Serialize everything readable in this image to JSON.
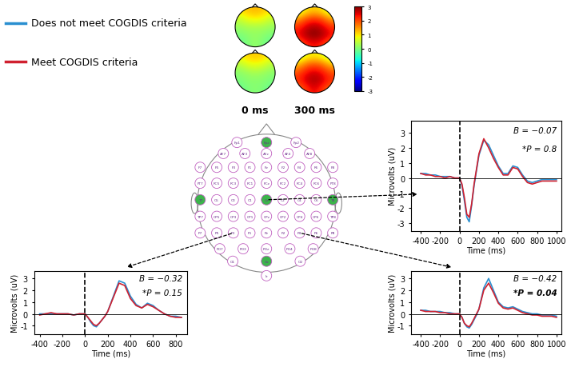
{
  "chart_data": [
    {
      "type": "line",
      "x": [
        -400,
        -350,
        -300,
        -250,
        -200,
        -150,
        -100,
        -50,
        0,
        25,
        50,
        75,
        100,
        125,
        150,
        175,
        200,
        250,
        300,
        350,
        400,
        450,
        500,
        550,
        600,
        650,
        700,
        750,
        800,
        850,
        900,
        950,
        1000
      ],
      "series": [
        {
          "name": "Does not meet COGDIS criteria",
          "color": "#2a8fd0",
          "values": [
            0.3,
            0.3,
            0.2,
            0.2,
            0.1,
            0.1,
            0.1,
            0.0,
            0.0,
            -0.5,
            -1.5,
            -2.6,
            -2.9,
            -1.8,
            -0.5,
            0.5,
            1.5,
            2.5,
            2.2,
            1.5,
            0.8,
            0.3,
            0.3,
            0.8,
            0.7,
            0.2,
            -0.2,
            -0.3,
            -0.2,
            -0.1,
            -0.1,
            -0.1,
            -0.1
          ]
        },
        {
          "name": "Meet COGDIS criteria",
          "color": "#d0202f",
          "values": [
            0.3,
            0.2,
            0.2,
            0.1,
            0.1,
            0.0,
            0.1,
            0.0,
            0.0,
            -0.4,
            -1.3,
            -2.4,
            -2.6,
            -1.7,
            -0.4,
            0.6,
            1.6,
            2.6,
            2.0,
            1.3,
            0.7,
            0.2,
            0.2,
            0.7,
            0.6,
            0.1,
            -0.3,
            -0.4,
            -0.3,
            -0.2,
            -0.2,
            -0.2,
            -0.2
          ]
        }
      ],
      "xlabel": "Time (ms)",
      "ylabel": "Microvolts (uV)",
      "xlim": [
        -500,
        1050
      ],
      "ylim": [
        -3.5,
        3.8
      ],
      "xticks": [
        -400,
        -200,
        0,
        200,
        400,
        600,
        800,
        1000
      ],
      "yticks": [
        -3,
        -2,
        -1,
        0,
        1,
        2,
        3
      ],
      "event_time": 0,
      "baseline": 0,
      "annotations": [
        {
          "text": "B = −0.07",
          "bold": false
        },
        {
          "text": "*P = 0.8",
          "bold": false
        }
      ]
    },
    {
      "type": "line",
      "x": [
        -400,
        -350,
        -300,
        -250,
        -200,
        -150,
        -100,
        -50,
        0,
        25,
        50,
        75,
        100,
        125,
        150,
        175,
        200,
        250,
        300,
        350,
        400,
        450,
        500,
        550,
        600,
        650,
        700,
        750,
        800,
        850
      ],
      "series": [
        {
          "name": "Does not meet COGDIS criteria",
          "color": "#2a8fd0",
          "values": [
            0,
            0,
            0,
            0,
            0,
            0,
            -0.1,
            0,
            0,
            -0.3,
            -0.7,
            -1.0,
            -1.1,
            -0.8,
            -0.5,
            -0.2,
            0.2,
            1.5,
            2.8,
            2.6,
            1.5,
            0.8,
            0.5,
            0.9,
            0.7,
            0.3,
            0,
            -0.2,
            -0.2,
            -0.3
          ]
        },
        {
          "name": "Meet COGDIS criteria",
          "color": "#d0202f",
          "values": [
            -0.1,
            0,
            0.1,
            0,
            0,
            0,
            -0.1,
            0,
            0,
            -0.3,
            -0.6,
            -0.9,
            -1.0,
            -0.8,
            -0.5,
            -0.2,
            0.2,
            1.4,
            2.6,
            2.4,
            1.3,
            0.7,
            0.5,
            0.8,
            0.6,
            0.3,
            0,
            -0.2,
            -0.3,
            -0.3
          ]
        }
      ],
      "xlabel": "Time (ms)",
      "ylabel": "Microvolts (uV)",
      "xlim": [
        -450,
        900
      ],
      "ylim": [
        -1.7,
        3.6
      ],
      "xticks": [
        -400,
        -200,
        0,
        200,
        400,
        600,
        800
      ],
      "yticks": [
        -1,
        0,
        1,
        2,
        3
      ],
      "event_time": 0,
      "baseline": 0,
      "annotations": [
        {
          "text": "B = −0.32",
          "bold": false
        },
        {
          "text": "*P = 0.15",
          "bold": false
        }
      ]
    },
    {
      "type": "line",
      "x": [
        -400,
        -350,
        -300,
        -250,
        -200,
        -150,
        -100,
        -50,
        0,
        25,
        50,
        75,
        100,
        125,
        150,
        175,
        200,
        250,
        300,
        350,
        400,
        450,
        500,
        550,
        600,
        650,
        700,
        750,
        800,
        850,
        900,
        950,
        1000
      ],
      "series": [
        {
          "name": "Does not meet COGDIS criteria",
          "color": "#2a8fd0",
          "values": [
            0.3,
            0.3,
            0.2,
            0.2,
            0.2,
            0.1,
            0.1,
            0,
            0,
            -0.3,
            -0.8,
            -1.1,
            -1.2,
            -0.9,
            -0.5,
            -0.1,
            0.4,
            2.2,
            3.0,
            2.0,
            1.0,
            0.6,
            0.5,
            0.6,
            0.4,
            0.2,
            0.1,
            0,
            0,
            -0.1,
            -0.1,
            -0.1,
            -0.2
          ]
        },
        {
          "name": "Meet COGDIS criteria",
          "color": "#d0202f",
          "values": [
            0.3,
            0.2,
            0.2,
            0.2,
            0.1,
            0.1,
            0.0,
            0,
            0,
            -0.3,
            -0.8,
            -1.0,
            -1.1,
            -0.8,
            -0.4,
            0,
            0.4,
            2.0,
            2.6,
            1.8,
            0.9,
            0.5,
            0.4,
            0.5,
            0.3,
            0.1,
            0,
            -0.1,
            -0.1,
            -0.2,
            -0.2,
            -0.2,
            -0.3
          ]
        }
      ],
      "xlabel": "Time (ms)",
      "ylabel": "Microvolts (uV)",
      "xlim": [
        -500,
        1050
      ],
      "ylim": [
        -1.7,
        3.6
      ],
      "xticks": [
        -400,
        -200,
        0,
        200,
        400,
        600,
        800,
        1000
      ],
      "yticks": [
        -1,
        0,
        1,
        2,
        3
      ],
      "event_time": 0,
      "baseline": 0,
      "annotations": [
        {
          "text": "B = −0.42",
          "bold": false
        },
        {
          "text": "*P = 0.04",
          "bold": true
        }
      ]
    }
  ],
  "legend": [
    {
      "name": "Does not meet COGDIS criteria",
      "color": "#2a8fd0"
    },
    {
      "name": "Meet COGDIS criteria",
      "color": "#d0202f"
    }
  ],
  "topomaps": {
    "times": [
      "0 ms",
      "300 ms"
    ],
    "colorbar": {
      "lim": [
        -3,
        3
      ],
      "ticks": [
        -3,
        -2,
        -1,
        0,
        1,
        2,
        3
      ]
    },
    "rows": [
      [
        [
          [
            1.0,
            1.2,
            1.3,
            1.2,
            1.0
          ],
          [
            0.5,
            0.8,
            0.9,
            0.8,
            0.5
          ],
          [
            0.2,
            0.3,
            0.3,
            0.3,
            0.2
          ],
          [
            0.0,
            0.1,
            0.2,
            0.1,
            0.0
          ],
          [
            -0.2,
            0.0,
            0.2,
            0.0,
            -0.2
          ]
        ],
        [
          [
            0.5,
            1.0,
            1.2,
            1.0,
            0.5
          ],
          [
            1.5,
            2.0,
            2.2,
            2.0,
            1.5
          ],
          [
            2.2,
            2.6,
            2.8,
            2.6,
            2.2
          ],
          [
            2.4,
            2.8,
            3.0,
            2.8,
            2.4
          ],
          [
            1.8,
            2.2,
            2.4,
            2.2,
            1.8
          ]
        ]
      ],
      [
        [
          [
            0.9,
            1.1,
            1.2,
            1.1,
            0.9
          ],
          [
            0.4,
            0.7,
            0.8,
            0.7,
            0.4
          ],
          [
            0.1,
            0.2,
            0.3,
            0.2,
            0.1
          ],
          [
            0.0,
            0.1,
            0.1,
            0.1,
            0.0
          ],
          [
            -0.2,
            0.0,
            0.1,
            0.0,
            -0.2
          ]
        ],
        [
          [
            0.4,
            0.8,
            1.0,
            0.8,
            0.4
          ],
          [
            1.3,
            1.8,
            2.0,
            1.8,
            1.3
          ],
          [
            2.0,
            2.4,
            2.6,
            2.4,
            2.0
          ],
          [
            2.2,
            2.6,
            2.8,
            2.6,
            2.2
          ],
          [
            1.7,
            2.1,
            2.5,
            2.1,
            1.7
          ]
        ]
      ]
    ]
  },
  "montage": {
    "rows": [
      [
        "Fp1",
        "Fpz",
        "Fp2"
      ],
      [
        "AF7",
        "AF3",
        "AFz",
        "AF4",
        "AF8"
      ],
      [
        "F7",
        "F5",
        "F3",
        "F1",
        "Fz",
        "F2",
        "F4",
        "F6",
        "F8"
      ],
      [
        "FT7",
        "FC5",
        "FC3",
        "FC1",
        "FCz",
        "FC2",
        "FC4",
        "FC6",
        "FT8"
      ],
      [
        "T7",
        "C5",
        "C3",
        "C1",
        "Cz",
        "C2",
        "C4",
        "C6",
        "T8"
      ],
      [
        "TP7",
        "CP5",
        "CP3",
        "CP1",
        "CPz",
        "CP2",
        "CP4",
        "CP6",
        "TP8"
      ],
      [
        "P7",
        "P5",
        "P3",
        "P1",
        "Pz",
        "P2",
        "P4",
        "P6",
        "P8"
      ],
      [
        "PO7",
        "PO3",
        "POz",
        "PO4",
        "PO8"
      ],
      [
        "O1",
        "Oz",
        "O2"
      ],
      [
        "Iz"
      ]
    ],
    "highlighted": [
      "Fpz",
      "T7",
      "Cz",
      "T8",
      "Oz"
    ]
  }
}
